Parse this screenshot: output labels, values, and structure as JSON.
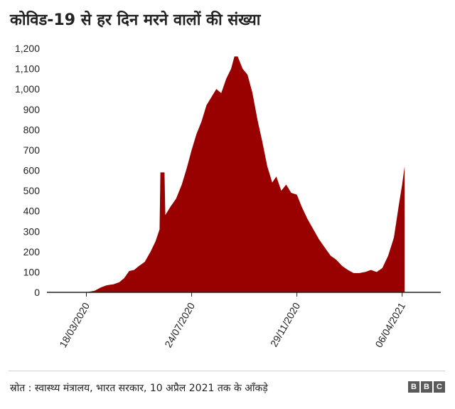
{
  "title": "कोविड-19 से हर दिन मरने वालों की संख्या",
  "source": "स्रोत : स्वास्थ्य मंत्रालय, भारत सरकार, 10 अप्रैल 2021 तक के आँकड़े",
  "logo": {
    "letters": [
      "B",
      "B",
      "C"
    ]
  },
  "colors": {
    "series": "#990000",
    "axis": "#222222",
    "text": "#222222"
  },
  "chart_data": {
    "type": "area",
    "title": "कोविड-19 से हर दिन मरने वालों की संख्या",
    "xlabel": "",
    "ylabel": "",
    "ylim": [
      0,
      1200
    ],
    "yticks": [
      0,
      100,
      200,
      300,
      400,
      500,
      600,
      700,
      800,
      900,
      1000,
      1100,
      1200
    ],
    "ytick_labels": [
      "0",
      "100",
      "200",
      "300",
      "400",
      "500",
      "600",
      "700",
      "800",
      "900",
      "1,000",
      "1,100",
      "1,200"
    ],
    "xlim": [
      "2020-01-30",
      "2021-05-23"
    ],
    "xticks": [
      {
        "date": "2020-03-18",
        "label": "18/03/2020"
      },
      {
        "date": "2020-07-24",
        "label": "24/07/2020"
      },
      {
        "date": "2020-11-29",
        "label": "29/11/2020"
      },
      {
        "date": "2021-04-06",
        "label": "06/04/2021"
      }
    ],
    "grid": false,
    "legend": "none",
    "series": [
      {
        "points": [
          [
            "2020-01-30",
            0
          ],
          [
            "2020-03-10",
            0
          ],
          [
            "2020-03-20",
            2
          ],
          [
            "2020-03-28",
            8
          ],
          [
            "2020-04-05",
            25
          ],
          [
            "2020-04-12",
            35
          ],
          [
            "2020-04-20",
            40
          ],
          [
            "2020-04-27",
            50
          ],
          [
            "2020-05-03",
            70
          ],
          [
            "2020-05-09",
            105
          ],
          [
            "2020-05-15",
            110
          ],
          [
            "2020-05-21",
            130
          ],
          [
            "2020-05-28",
            150
          ],
          [
            "2020-06-04",
            200
          ],
          [
            "2020-06-10",
            250
          ],
          [
            "2020-06-15",
            310
          ],
          [
            "2020-06-16",
            590
          ],
          [
            "2020-06-21",
            590
          ],
          [
            "2020-06-22",
            380
          ],
          [
            "2020-06-28",
            420
          ],
          [
            "2020-07-05",
            460
          ],
          [
            "2020-07-12",
            530
          ],
          [
            "2020-07-18",
            610
          ],
          [
            "2020-07-24",
            700
          ],
          [
            "2020-07-30",
            780
          ],
          [
            "2020-08-05",
            840
          ],
          [
            "2020-08-11",
            920
          ],
          [
            "2020-08-17",
            960
          ],
          [
            "2020-08-23",
            1000
          ],
          [
            "2020-08-29",
            980
          ],
          [
            "2020-09-04",
            1050
          ],
          [
            "2020-09-10",
            1100
          ],
          [
            "2020-09-14",
            1160
          ],
          [
            "2020-09-18",
            1160
          ],
          [
            "2020-09-24",
            1100
          ],
          [
            "2020-09-30",
            1070
          ],
          [
            "2020-10-06",
            980
          ],
          [
            "2020-10-12",
            850
          ],
          [
            "2020-10-18",
            740
          ],
          [
            "2020-10-24",
            620
          ],
          [
            "2020-10-30",
            540
          ],
          [
            "2020-11-04",
            570
          ],
          [
            "2020-11-10",
            500
          ],
          [
            "2020-11-16",
            530
          ],
          [
            "2020-11-22",
            490
          ],
          [
            "2020-11-29",
            480
          ],
          [
            "2020-12-05",
            420
          ],
          [
            "2020-12-12",
            360
          ],
          [
            "2020-12-19",
            310
          ],
          [
            "2020-12-26",
            260
          ],
          [
            "2021-01-02",
            220
          ],
          [
            "2021-01-09",
            180
          ],
          [
            "2021-01-16",
            160
          ],
          [
            "2021-01-23",
            130
          ],
          [
            "2021-01-30",
            110
          ],
          [
            "2021-02-06",
            95
          ],
          [
            "2021-02-13",
            95
          ],
          [
            "2021-02-20",
            100
          ],
          [
            "2021-02-27",
            110
          ],
          [
            "2021-03-06",
            100
          ],
          [
            "2021-03-13",
            120
          ],
          [
            "2021-03-20",
            180
          ],
          [
            "2021-03-27",
            270
          ],
          [
            "2021-04-02",
            430
          ],
          [
            "2021-04-06",
            530
          ],
          [
            "2021-04-09",
            620
          ]
        ]
      }
    ]
  }
}
